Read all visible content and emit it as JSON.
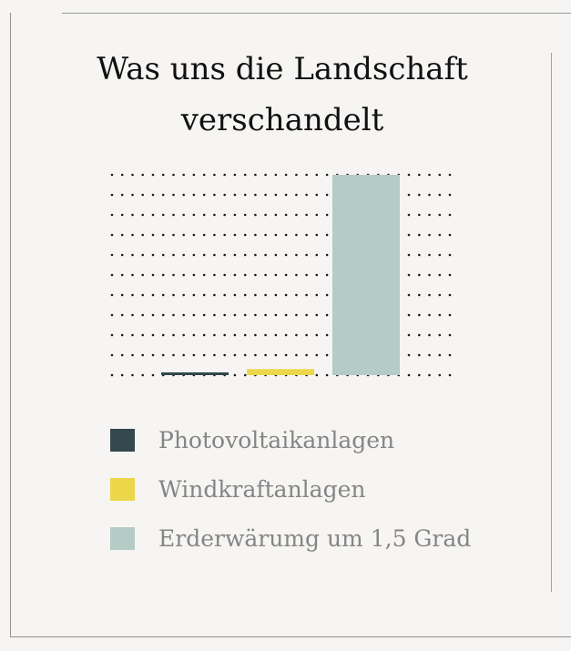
{
  "chart_data": {
    "type": "bar",
    "title": "Was uns die Landschaft verschandelt",
    "categories": [
      "Photovoltaikanlagen",
      "Windkraftanlagen",
      "Erderwärumg um 1,5 Grad"
    ],
    "values": [
      1.2,
      3,
      100
    ],
    "ylim": [
      0,
      100
    ],
    "colors": [
      "#34484d",
      "#ecd64a",
      "#b4cbc6"
    ],
    "grid": true,
    "xlabel": "",
    "ylabel": ""
  },
  "legend": {
    "items": [
      {
        "label": "Photovoltaikanlagen",
        "color": "#34484d"
      },
      {
        "label": "Windkraftanlagen",
        "color": "#ecd64a"
      },
      {
        "label": "Erderwärumg um 1,5 Grad",
        "color": "#b4cbc6"
      }
    ]
  }
}
